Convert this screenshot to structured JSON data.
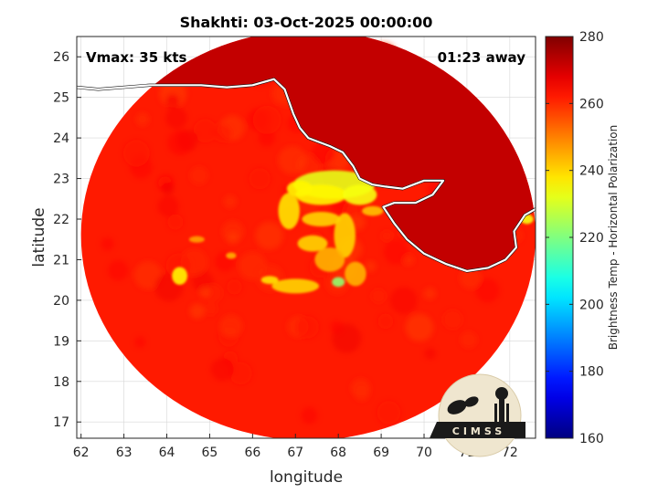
{
  "chart_data": {
    "type": "heatmap",
    "title": "Shakhti: 03-Oct-2025 00:00:00",
    "xlabel": "longitude",
    "ylabel": "latitude",
    "xlim": [
      61.9,
      72.6
    ],
    "ylim": [
      16.6,
      26.5
    ],
    "xticks": [
      62,
      63,
      64,
      65,
      66,
      67,
      68,
      69,
      70,
      71,
      72
    ],
    "yticks": [
      17,
      18,
      19,
      20,
      21,
      22,
      23,
      24,
      25,
      26
    ],
    "grid": true,
    "annotations": {
      "vmax": "Vmax: 35 kts",
      "away": "01:23 away"
    },
    "colorbar": {
      "label": "Brightness Temp - Horizontal Polarization",
      "range": [
        160,
        280
      ],
      "ticks": [
        160,
        180,
        200,
        220,
        240,
        260,
        280
      ],
      "colormap": "jet",
      "placement": "right"
    },
    "background_value": 262,
    "swath": {
      "center_lon": 67.3,
      "center_lat": 21.6,
      "radius_lon": 5.3,
      "radius_lat": 5.05
    },
    "land": {
      "value": 272,
      "coastline": [
        [
          61.9,
          25.25
        ],
        [
          62.4,
          25.2
        ],
        [
          63.0,
          25.25
        ],
        [
          63.6,
          25.3
        ],
        [
          64.2,
          25.3
        ],
        [
          64.8,
          25.3
        ],
        [
          65.4,
          25.25
        ],
        [
          66.0,
          25.3
        ],
        [
          66.5,
          25.45
        ],
        [
          66.75,
          25.2
        ],
        [
          66.95,
          24.6
        ],
        [
          67.1,
          24.25
        ],
        [
          67.3,
          24.0
        ],
        [
          67.55,
          23.9
        ],
        [
          67.8,
          23.8
        ],
        [
          68.1,
          23.65
        ],
        [
          68.35,
          23.3
        ],
        [
          68.5,
          23.0
        ],
        [
          68.8,
          22.85
        ],
        [
          69.1,
          22.8
        ],
        [
          69.5,
          22.75
        ],
        [
          70.0,
          22.95
        ],
        [
          70.45,
          22.95
        ],
        [
          70.2,
          22.6
        ],
        [
          69.8,
          22.4
        ],
        [
          69.3,
          22.4
        ],
        [
          69.05,
          22.3
        ],
        [
          69.3,
          21.9
        ],
        [
          69.6,
          21.5
        ],
        [
          70.0,
          21.15
        ],
        [
          70.5,
          20.9
        ],
        [
          71.0,
          20.72
        ],
        [
          71.5,
          20.8
        ],
        [
          71.9,
          21.0
        ],
        [
          72.15,
          21.3
        ],
        [
          72.1,
          21.7
        ],
        [
          72.35,
          22.1
        ],
        [
          72.6,
          22.25
        ]
      ]
    },
    "features": [
      {
        "lon": 67.9,
        "lat": 22.85,
        "value": 232,
        "rlon": 0.95,
        "rlat": 0.35
      },
      {
        "lon": 67.6,
        "lat": 22.6,
        "value": 236,
        "rlon": 0.6,
        "rlat": 0.25
      },
      {
        "lon": 68.5,
        "lat": 22.6,
        "value": 234,
        "rlon": 0.4,
        "rlat": 0.25
      },
      {
        "lon": 67.1,
        "lat": 22.75,
        "value": 236,
        "rlon": 0.3,
        "rlat": 0.2
      },
      {
        "lon": 66.85,
        "lat": 22.2,
        "value": 238,
        "rlon": 0.25,
        "rlat": 0.45
      },
      {
        "lon": 67.6,
        "lat": 22.0,
        "value": 240,
        "rlon": 0.45,
        "rlat": 0.18
      },
      {
        "lon": 68.15,
        "lat": 21.6,
        "value": 240,
        "rlon": 0.25,
        "rlat": 0.55
      },
      {
        "lon": 67.4,
        "lat": 21.4,
        "value": 240,
        "rlon": 0.35,
        "rlat": 0.2
      },
      {
        "lon": 67.8,
        "lat": 21.0,
        "value": 244,
        "rlon": 0.35,
        "rlat": 0.3
      },
      {
        "lon": 68.4,
        "lat": 20.65,
        "value": 244,
        "rlon": 0.25,
        "rlat": 0.3
      },
      {
        "lon": 68.0,
        "lat": 20.45,
        "value": 222,
        "rlon": 0.15,
        "rlat": 0.12
      },
      {
        "lon": 67.0,
        "lat": 20.35,
        "value": 240,
        "rlon": 0.55,
        "rlat": 0.18
      },
      {
        "lon": 66.4,
        "lat": 20.5,
        "value": 238,
        "rlon": 0.2,
        "rlat": 0.1
      },
      {
        "lon": 64.3,
        "lat": 20.6,
        "value": 236,
        "rlon": 0.18,
        "rlat": 0.22
      },
      {
        "lon": 65.5,
        "lat": 21.1,
        "value": 244,
        "rlon": 0.12,
        "rlat": 0.08
      },
      {
        "lon": 64.7,
        "lat": 21.5,
        "value": 246,
        "rlon": 0.18,
        "rlat": 0.08
      },
      {
        "lon": 68.8,
        "lat": 22.2,
        "value": 242,
        "rlon": 0.25,
        "rlat": 0.12
      },
      {
        "lon": 72.4,
        "lat": 22.0,
        "value": 234,
        "rlon": 0.15,
        "rlat": 0.12
      }
    ],
    "logo": {
      "text": "CIMSS",
      "placement": "bottom-right"
    }
  }
}
